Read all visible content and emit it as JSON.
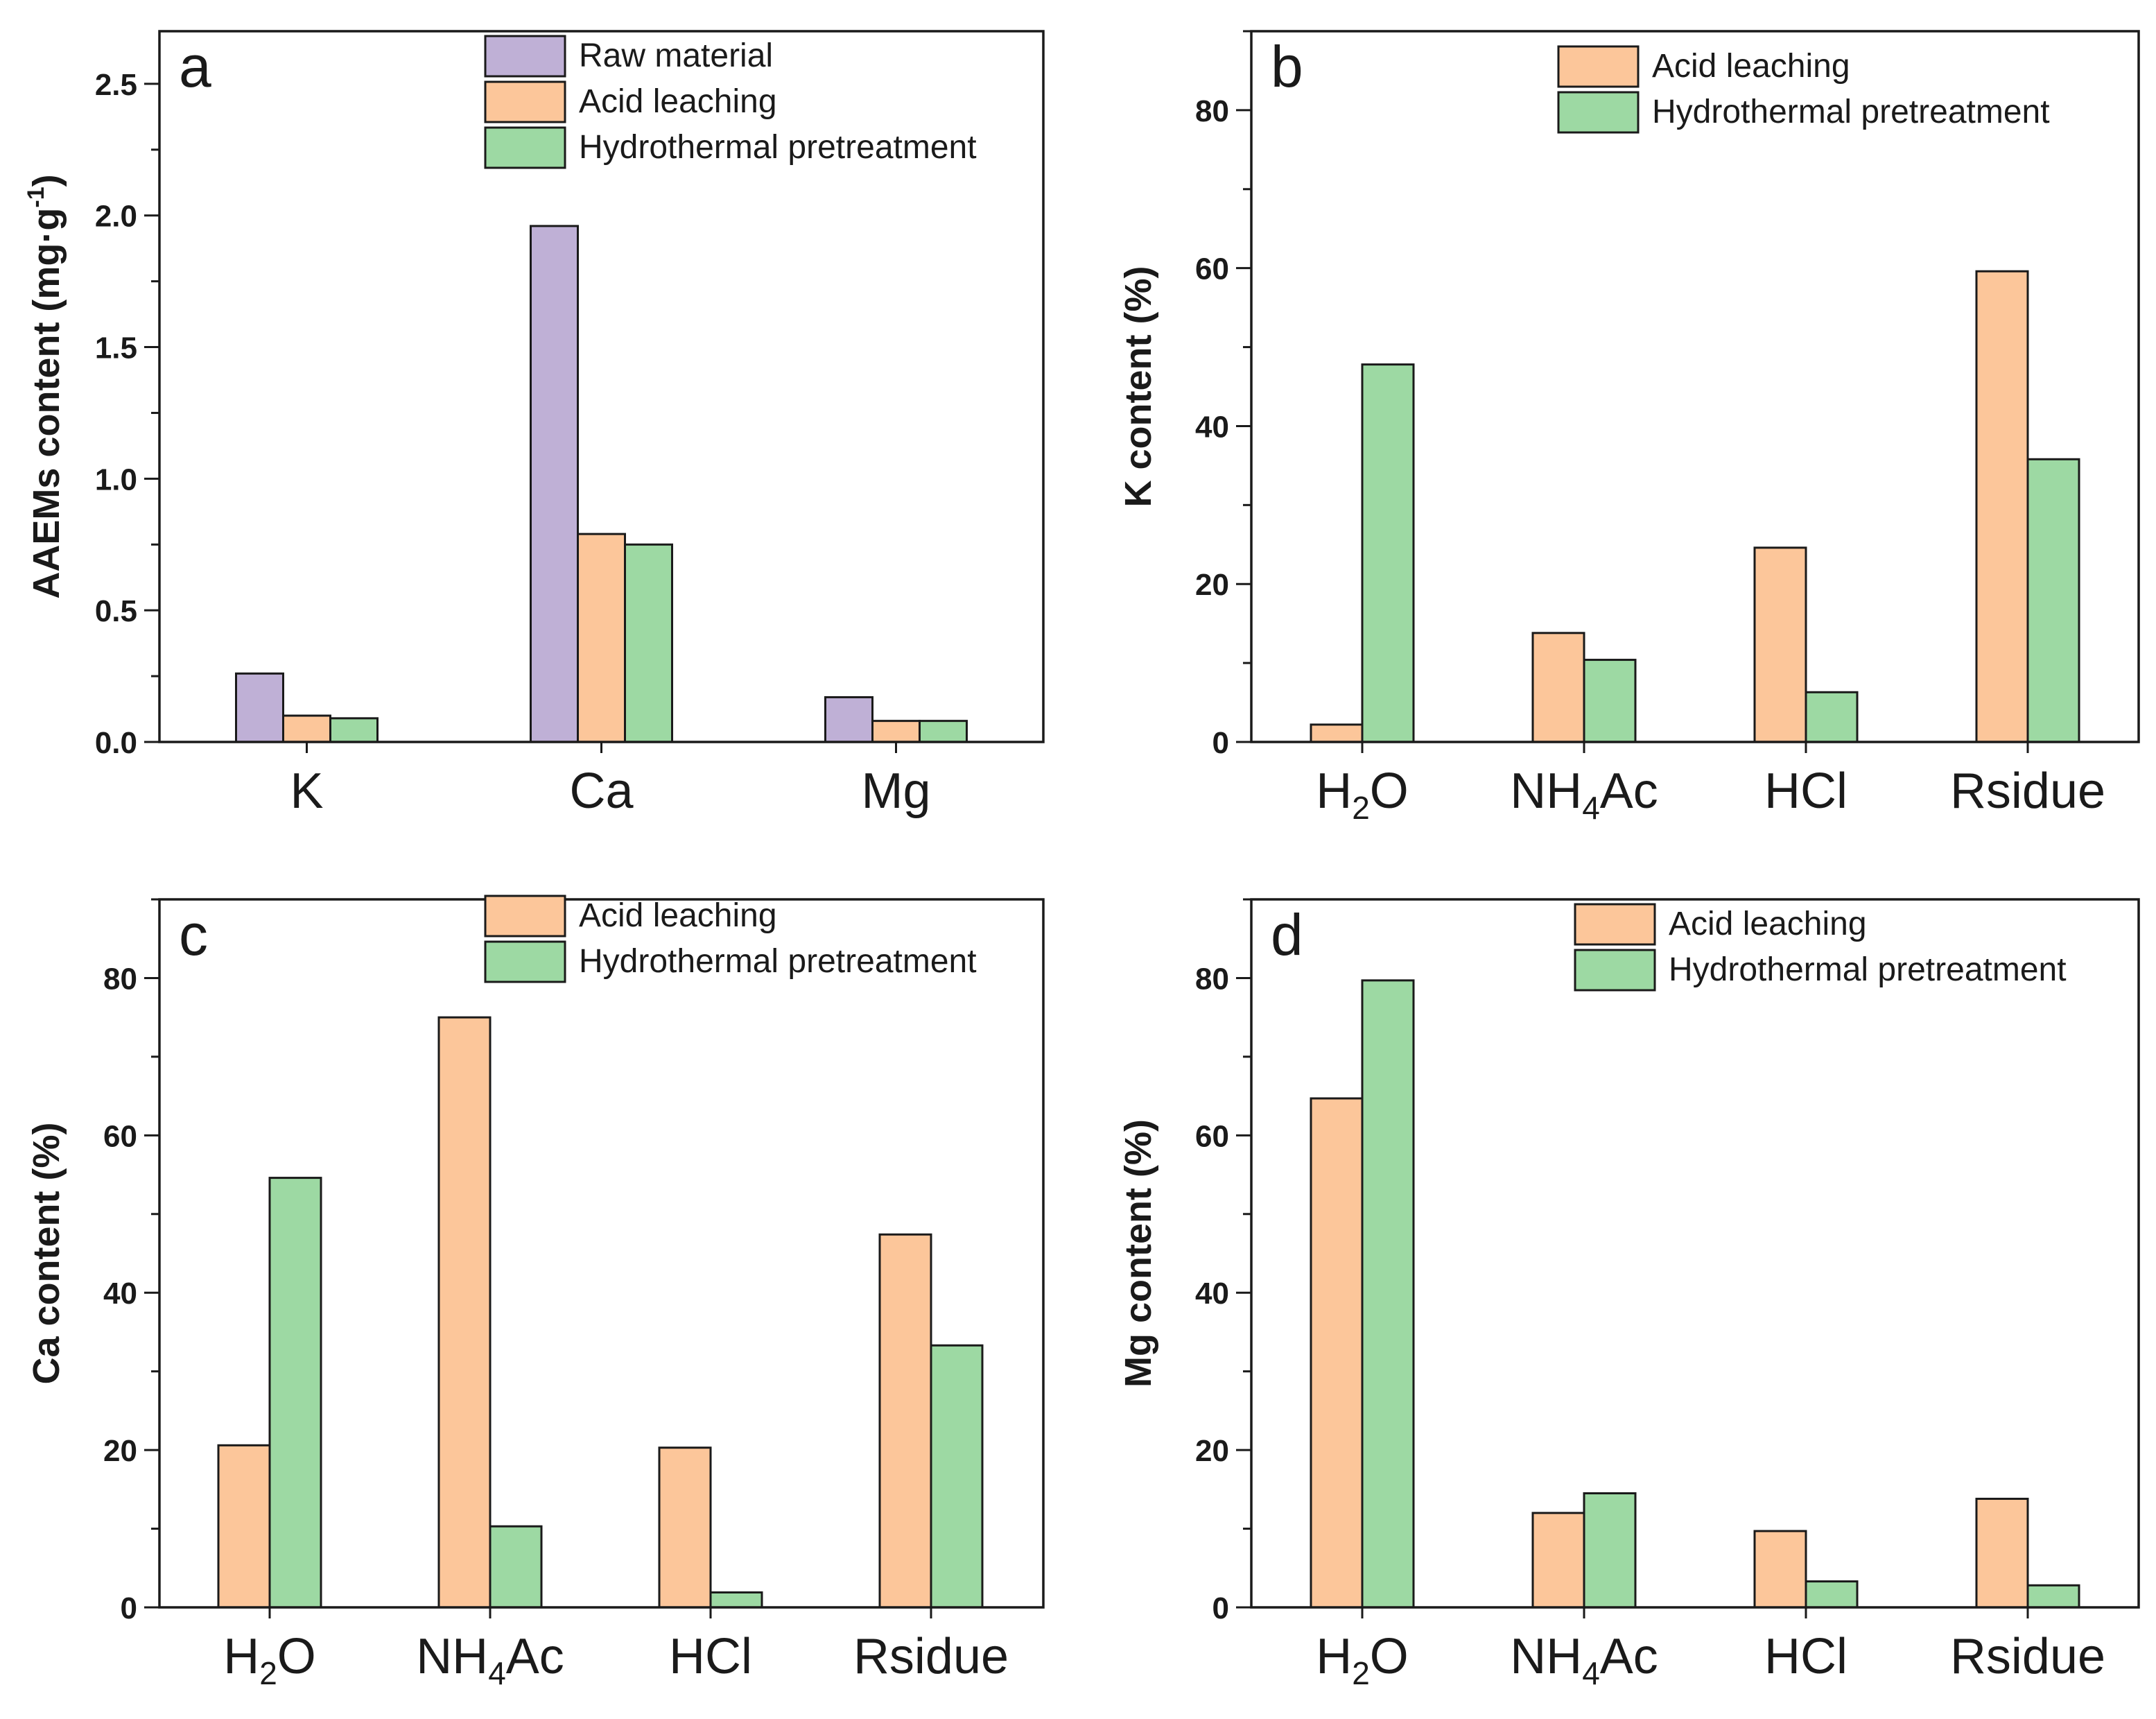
{
  "colors": {
    "raw_material": "#bfb0d6",
    "acid_leaching": "#fcc69a",
    "hydrothermal": "#9dd9a3",
    "axis": "#1a1a1a"
  },
  "chart_data": [
    {
      "panel": "a",
      "type": "bar",
      "ylabel": "AAEMs content (mg·g",
      "ylabel_sup": "-1",
      "ylabel_end": ")",
      "ylim": [
        0,
        2.7
      ],
      "yticks": [
        0.0,
        0.5,
        1.0,
        1.5,
        2.0,
        2.5
      ],
      "ytick_labels": [
        "0.0",
        "0.5",
        "1.0",
        "1.5",
        "2.0",
        "2.5"
      ],
      "categories": [
        {
          "main": "K",
          "sub": "",
          "tail": ""
        },
        {
          "main": "Ca",
          "sub": "",
          "tail": ""
        },
        {
          "main": "Mg",
          "sub": "",
          "tail": ""
        }
      ],
      "legend_position": "top-right",
      "series": [
        {
          "name": "Raw material",
          "color_key": "raw_material",
          "values": [
            0.26,
            1.96,
            0.17
          ]
        },
        {
          "name": "Acid leaching",
          "color_key": "acid_leaching",
          "values": [
            0.1,
            0.79,
            0.08
          ]
        },
        {
          "name": "Hydrothermal pretreatment",
          "color_key": "hydrothermal",
          "values": [
            0.09,
            0.75,
            0.08
          ]
        }
      ]
    },
    {
      "panel": "b",
      "type": "bar",
      "ylabel": "K content (%)",
      "ylabel_sup": "",
      "ylabel_end": "",
      "ylim": [
        0,
        90
      ],
      "yticks": [
        0,
        20,
        40,
        60,
        80
      ],
      "ytick_labels": [
        "0",
        "20",
        "40",
        "60",
        "80"
      ],
      "categories": [
        {
          "main": "H",
          "sub": "2",
          "tail": "O"
        },
        {
          "main": "NH",
          "sub": "4",
          "tail": "Ac"
        },
        {
          "main": "HCl",
          "sub": "",
          "tail": ""
        },
        {
          "main": "Rsidue",
          "sub": "",
          "tail": ""
        }
      ],
      "legend_position": "top-right",
      "series": [
        {
          "name": "Acid leaching",
          "color_key": "acid_leaching",
          "values": [
            2.2,
            13.8,
            24.6,
            59.6
          ]
        },
        {
          "name": "Hydrothermal pretreatment",
          "color_key": "hydrothermal",
          "values": [
            47.8,
            10.4,
            6.3,
            35.8
          ]
        }
      ]
    },
    {
      "panel": "c",
      "type": "bar",
      "ylabel": "Ca content (%)",
      "ylabel_sup": "",
      "ylabel_end": "",
      "ylim": [
        0,
        90
      ],
      "yticks": [
        0,
        20,
        40,
        60,
        80
      ],
      "ytick_labels": [
        "0",
        "20",
        "40",
        "60",
        "80"
      ],
      "categories": [
        {
          "main": "H",
          "sub": "2",
          "tail": "O"
        },
        {
          "main": "NH",
          "sub": "4",
          "tail": "Ac"
        },
        {
          "main": "HCl",
          "sub": "",
          "tail": ""
        },
        {
          "main": "Rsidue",
          "sub": "",
          "tail": ""
        }
      ],
      "legend_position": "top-right",
      "series": [
        {
          "name": "Acid leaching",
          "color_key": "acid_leaching",
          "values": [
            20.6,
            75.0,
            20.3,
            47.4
          ]
        },
        {
          "name": "Hydrothermal pretreatment",
          "color_key": "hydrothermal",
          "values": [
            54.6,
            10.3,
            1.9,
            33.3
          ]
        }
      ]
    },
    {
      "panel": "d",
      "type": "bar",
      "ylabel": "Mg content (%)",
      "ylabel_sup": "",
      "ylabel_end": "",
      "ylim": [
        0,
        90
      ],
      "yticks": [
        0,
        20,
        40,
        60,
        80
      ],
      "ytick_labels": [
        "0",
        "20",
        "40",
        "60",
        "80"
      ],
      "categories": [
        {
          "main": "H",
          "sub": "2",
          "tail": "O"
        },
        {
          "main": "NH",
          "sub": "4",
          "tail": "Ac"
        },
        {
          "main": "HCl",
          "sub": "",
          "tail": ""
        },
        {
          "main": "Rsidue",
          "sub": "",
          "tail": ""
        }
      ],
      "legend_position": "top-right",
      "series": [
        {
          "name": "Acid leaching",
          "color_key": "acid_leaching",
          "values": [
            64.7,
            12.0,
            9.7,
            13.8
          ]
        },
        {
          "name": "Hydrothermal pretreatment",
          "color_key": "hydrothermal",
          "values": [
            79.7,
            14.5,
            3.3,
            2.8
          ]
        }
      ]
    }
  ]
}
